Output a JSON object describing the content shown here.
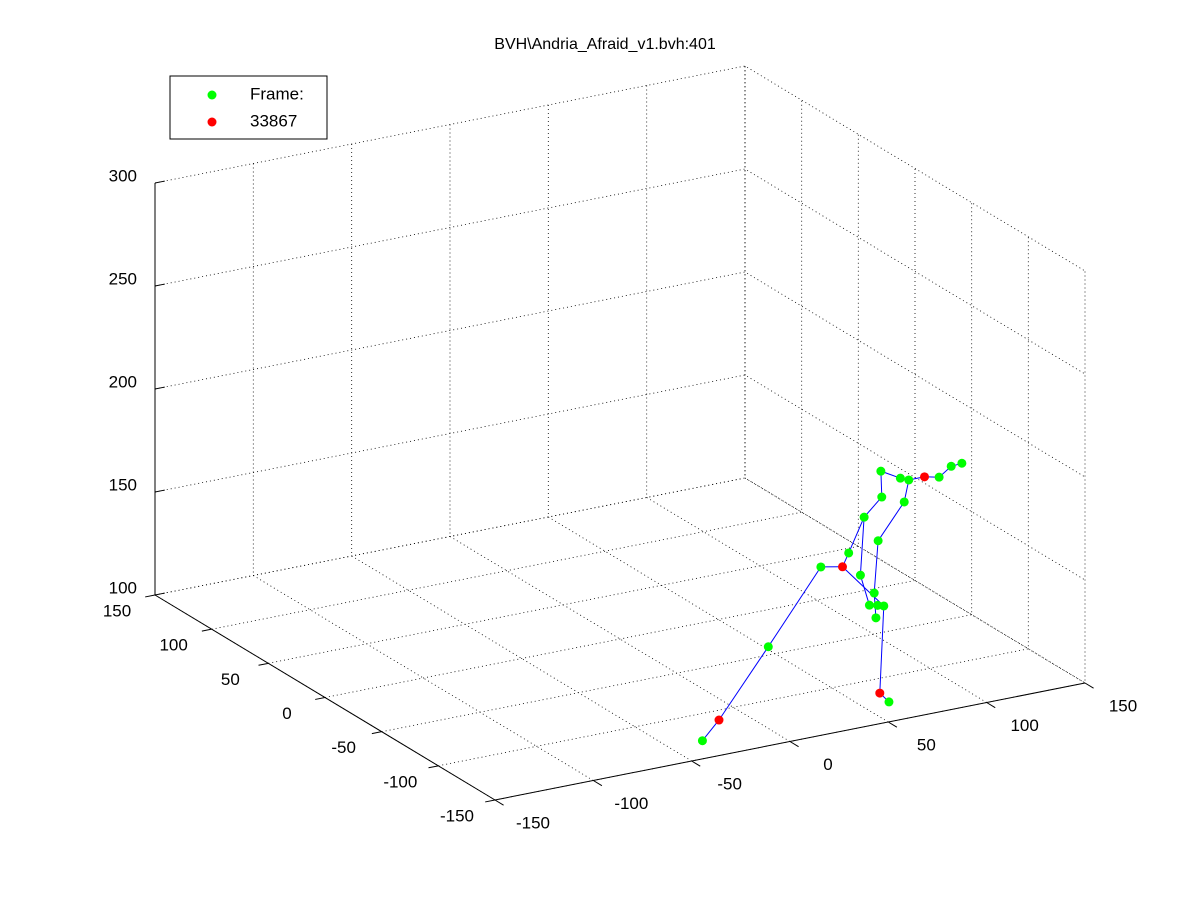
{
  "chart_data": {
    "type": "scatter3d",
    "title": "BVH\\Andria_Afraid_v1.bvh:401",
    "xlim": [
      -150,
      150
    ],
    "ylim": [
      -150,
      150
    ],
    "zlim": [
      100,
      300
    ],
    "xticks": [
      -150,
      -100,
      -50,
      0,
      50,
      100,
      150
    ],
    "yticks": [
      -150,
      -100,
      -50,
      0,
      50,
      100,
      150
    ],
    "zticks": [
      100,
      150,
      200,
      250,
      300
    ],
    "grid": true,
    "legend": "northwest",
    "series": [
      {
        "name": "Frame:",
        "color": "#00ff00",
        "x": [
          -33,
          -7,
          18,
          31,
          40,
          53,
          56,
          65,
          59,
          65,
          81,
          86,
          92,
          50,
          48,
          48,
          46,
          50,
          41,
          45,
          63
        ],
        "y": [
          -130,
          -143,
          -146,
          -148,
          -146,
          -139,
          -133,
          -138,
          -145,
          -142,
          -141,
          -143,
          -142,
          -141,
          -141,
          -144,
          -146,
          -146,
          -141,
          -142,
          -128
        ],
        "z": [
          100,
          145,
          180,
          185,
          200,
          205,
          215,
          200,
          215,
          212,
          210,
          215,
          215,
          185,
          160,
          155,
          150,
          155,
          170,
          155,
          100
        ]
      },
      {
        "name": "33867",
        "color": "#ff0000",
        "x": [
          -24,
          29,
          73,
          52
        ],
        "y": [
          -129,
          -146,
          -142,
          -139
        ],
        "z": [
          108,
          178,
          212,
          110
        ]
      }
    ],
    "bones": {
      "color": "#0000ff",
      "chains": [
        {
          "x": [
            -33,
            -24,
            -7,
            18,
            29
          ],
          "y": [
            -130,
            -129,
            -143,
            -146,
            -146
          ],
          "z": [
            100,
            108,
            145,
            180,
            178
          ]
        },
        {
          "x": [
            29,
            31,
            40,
            53,
            56
          ],
          "y": [
            -146,
            -148,
            -146,
            -139,
            -133
          ],
          "z": [
            178,
            185,
            200,
            205,
            215
          ]
        },
        {
          "x": [
            56,
            59,
            65,
            73,
            81,
            86,
            92
          ],
          "y": [
            -133,
            -145,
            -142,
            -142,
            -141,
            -143,
            -142
          ],
          "z": [
            215,
            215,
            212,
            212,
            210,
            215,
            215
          ]
        },
        {
          "x": [
            65,
            65,
            50,
            48,
            46
          ],
          "y": [
            -142,
            -138,
            -141,
            -141,
            -146
          ],
          "z": [
            212,
            200,
            185,
            160,
            150
          ]
        },
        {
          "x": [
            40,
            41,
            45,
            48
          ],
          "y": [
            -146,
            -141,
            -142,
            -144
          ],
          "z": [
            200,
            170,
            155,
            155
          ]
        },
        {
          "x": [
            29,
            50,
            52,
            63
          ],
          "y": [
            -146,
            -146,
            -139,
            -128
          ],
          "z": [
            178,
            155,
            110,
            100
          ]
        }
      ]
    }
  }
}
